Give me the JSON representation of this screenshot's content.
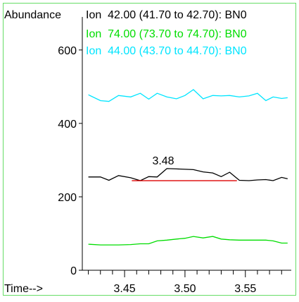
{
  "chart_data": {
    "type": "line",
    "ylabel": "Abundance",
    "xlabel": "Time-->",
    "xlim": [
      3.415,
      3.588
    ],
    "ylim": [
      0,
      690
    ],
    "x_ticks": [
      3.45,
      3.5,
      3.55
    ],
    "x_tick_labels": [
      "3.45",
      "3.50",
      "3.55"
    ],
    "y_ticks": [
      0,
      200,
      400,
      600
    ],
    "y_tick_labels": [
      "0",
      "200",
      "400",
      "600"
    ],
    "legend_placement": "top",
    "series": [
      {
        "name": "Ion  42.00 (41.70 to 42.70): BN0",
        "color": "#000000",
        "x": [
          3.42,
          3.43,
          3.437,
          3.445,
          3.455,
          3.463,
          3.47,
          3.477,
          3.485,
          3.493,
          3.5,
          3.507,
          3.515,
          3.523,
          3.53,
          3.537,
          3.545,
          3.553,
          3.56,
          3.567,
          3.573,
          3.58,
          3.585
        ],
        "values": [
          254,
          254,
          245,
          258,
          252,
          244,
          255,
          254,
          277,
          276,
          275,
          274,
          268,
          265,
          255,
          267,
          245,
          244,
          246,
          247,
          244,
          253,
          249
        ]
      },
      {
        "name": "Ion  74.00 (73.70 to 74.70): BN0",
        "color": "#00dd00",
        "x": [
          3.42,
          3.43,
          3.437,
          3.445,
          3.455,
          3.463,
          3.47,
          3.477,
          3.485,
          3.493,
          3.5,
          3.507,
          3.515,
          3.523,
          3.53,
          3.537,
          3.545,
          3.553,
          3.56,
          3.567,
          3.573,
          3.58,
          3.585
        ],
        "values": [
          71,
          69,
          69,
          69,
          70,
          72,
          72,
          80,
          82,
          85,
          87,
          92,
          88,
          92,
          85,
          83,
          82,
          82,
          82,
          82,
          80,
          74,
          74
        ]
      },
      {
        "name": "Ion  44.00 (43.70 to 44.70): BN0",
        "color": "#00e5ff",
        "x": [
          3.42,
          3.43,
          3.437,
          3.445,
          3.455,
          3.463,
          3.47,
          3.477,
          3.485,
          3.493,
          3.5,
          3.507,
          3.515,
          3.523,
          3.53,
          3.537,
          3.545,
          3.553,
          3.56,
          3.567,
          3.573,
          3.58,
          3.585
        ],
        "values": [
          478,
          462,
          460,
          476,
          472,
          482,
          466,
          482,
          472,
          467,
          476,
          492,
          467,
          476,
          475,
          476,
          472,
          475,
          482,
          462,
          472,
          468,
          470
        ]
      }
    ],
    "annotations": [
      {
        "label": "3.48",
        "x": 3.482
      }
    ],
    "integration_baseline": {
      "color": "#dd0000",
      "x": [
        3.456,
        3.543
      ],
      "values": [
        244,
        244
      ]
    }
  }
}
